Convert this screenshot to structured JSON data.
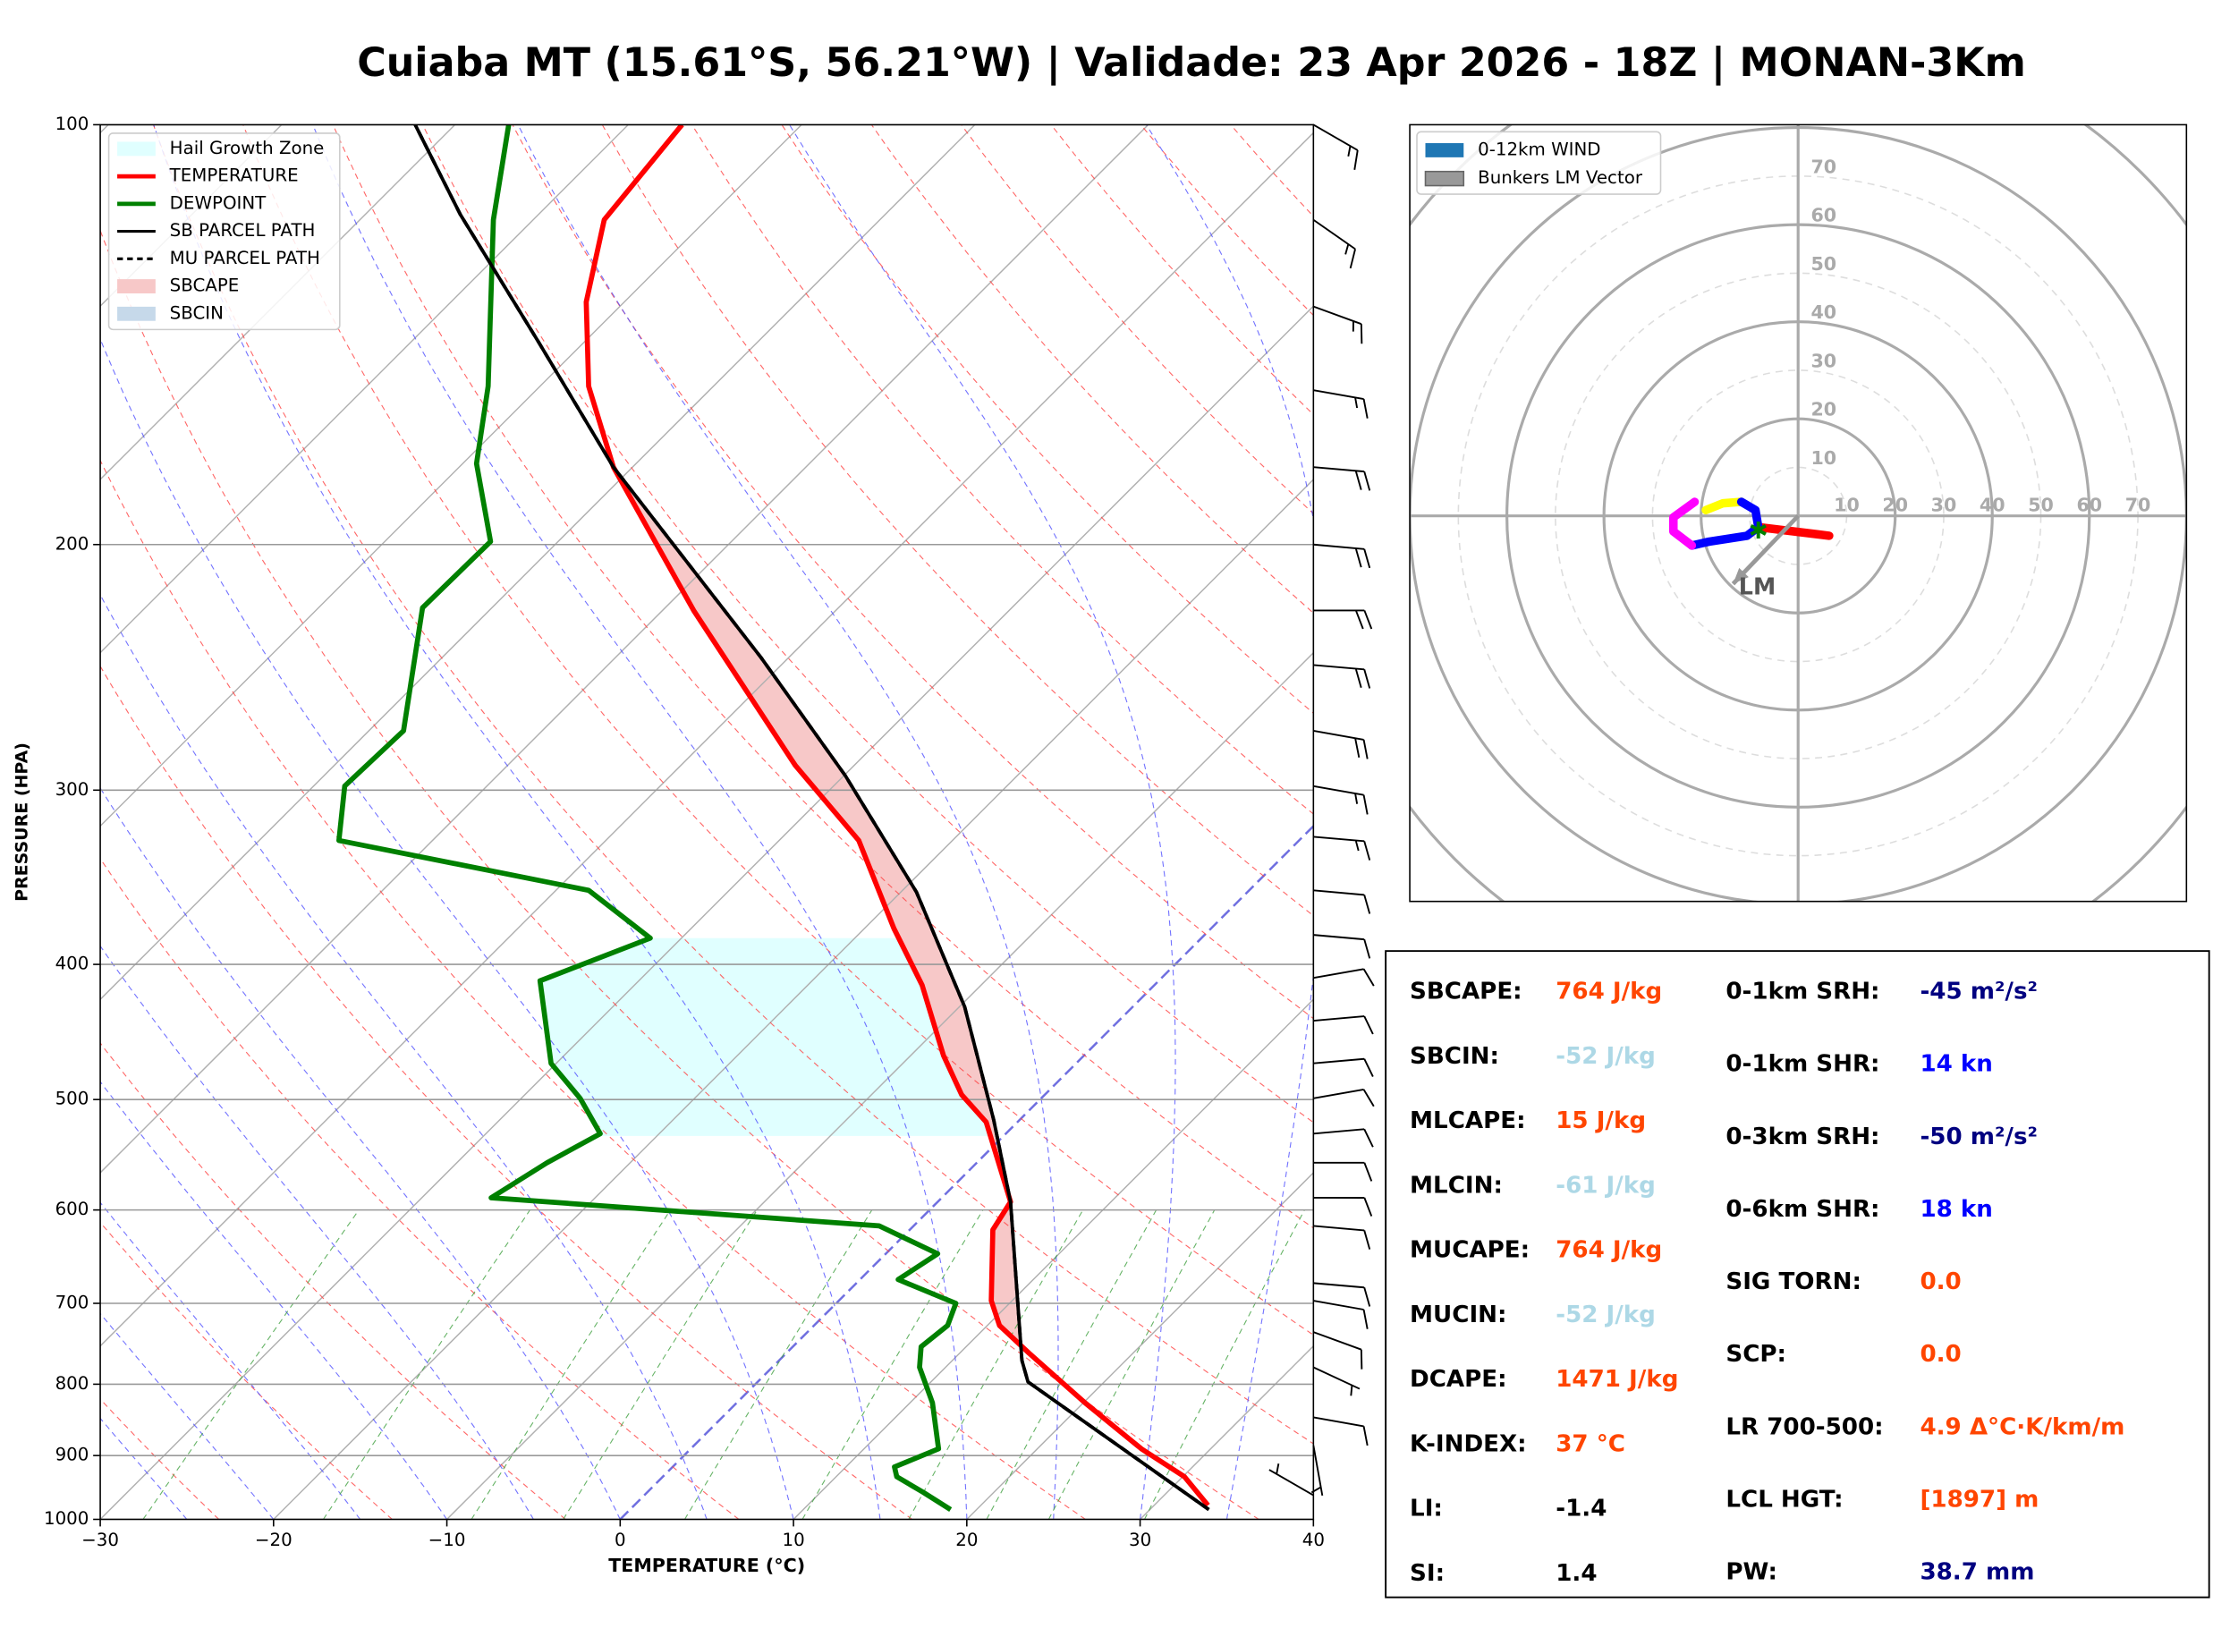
{
  "title": "Cuiaba MT (15.61°S, 56.21°W) | Validade: 23 Apr 2026 - 18Z | MONAN-3Km",
  "chart_data": [
    {
      "type": "skewt",
      "xlabel": "TEMPERATURE (°C)",
      "ylabel": "PRESSURE (HPA)",
      "xlim": [
        -30,
        40
      ],
      "ylim": [
        1000,
        100
      ],
      "log_y": true,
      "skew": true,
      "grid": true,
      "legend": "upper left",
      "freezing_isotherm": 0,
      "xticks": [
        {
          "value": -30,
          "label": "−30"
        },
        {
          "value": -20,
          "label": "−20"
        },
        {
          "value": -10,
          "label": "−10"
        },
        0,
        10,
        20,
        30,
        40
      ],
      "yticks": [
        100,
        200,
        300,
        400,
        500,
        600,
        700,
        800,
        900,
        1000
      ],
      "series": [
        {
          "name": "TEMPERATURE",
          "color": "#ff0000",
          "linestyle": "solid",
          "y": [
            977,
            932,
            890,
            825,
            760,
            726,
            697,
            620,
            592,
            519,
            496,
            465,
            414,
            377,
            326,
            288,
            223,
            176,
            154,
            134,
            117,
            100
          ],
          "x": [
            33.1,
            30.1,
            26.0,
            20.1,
            14.0,
            10.7,
            8.8,
            4.8,
            4.2,
            -1.8,
            -4.8,
            -8.1,
            -13.4,
            -18.3,
            -25.4,
            -33.4,
            -48.2,
            -61.1,
            -67.2,
            -72.2,
            -75.9,
            -76.9
          ]
        },
        {
          "name": "DEWPOINT",
          "color": "#008000",
          "linestyle": "solid",
          "y": [
            984,
            956,
            932,
            917,
            890,
            825,
            778,
            752,
            726,
            700,
            673,
            645,
            616,
            588,
            555,
            529,
            499,
            471,
            411,
            383,
            354,
            326,
            298,
            272,
            222,
            199,
            175,
            154,
            117,
            100
          ],
          "x": [
            18.5,
            15.9,
            13.5,
            12.8,
            14.3,
            11.3,
            8.5,
            7.4,
            7.7,
            6.9,
            2.2,
            3.0,
            -2.0,
            -26.0,
            -24.8,
            -23.4,
            -26.6,
            -30.3,
            -35.7,
            -31.8,
            -38.1,
            -55.4,
            -58.2,
            -58.0,
            -64.0,
            -63.9,
            -69.2,
            -73.0,
            -82.3,
            -86.9
          ]
        },
        {
          "name": "SB PARCEL PATH",
          "color": "#000000",
          "linestyle": "solid",
          "y": [
            984,
            797,
            769,
            592,
            517,
            429,
            355,
            293,
            241,
            176,
            143,
            116,
            100
          ],
          "x": [
            33.4,
            15.6,
            14.0,
            4.2,
            -1.5,
            -9.7,
            -19.1,
            -29.9,
            -41.6,
            -61.1,
            -72.7,
            -84.5,
            -92.3
          ]
        },
        {
          "name": "MU PARCEL PATH",
          "color": "#000000",
          "linestyle": "dashed",
          "y": [
            984,
            797,
            769,
            592,
            517,
            429,
            355,
            293,
            241,
            176,
            143,
            116,
            100
          ],
          "x": [
            33.4,
            15.6,
            14.0,
            4.2,
            -1.5,
            -9.7,
            -19.1,
            -29.9,
            -41.6,
            -61.1,
            -72.7,
            -84.5,
            -92.3
          ]
        }
      ],
      "shading": [
        {
          "name": "Hail Growth Zone",
          "color": "#e0ffff",
          "pressure_range": [
            531,
            383
          ]
        },
        {
          "name": "SBCAPE",
          "color": "#f7c8c8"
        },
        {
          "name": "SBCIN",
          "color": "#c6d9ea"
        }
      ],
      "wind_barbs": {
        "pressure": [
          100,
          117,
          135,
          155,
          176,
          200,
          223,
          244,
          272,
          298,
          324,
          354,
          381,
          409,
          439,
          471,
          499,
          529,
          555,
          588,
          616,
          677,
          697,
          734,
          778,
          845,
          885,
          961
        ],
        "direction": [
          120,
          125,
          110,
          100,
          95,
          95,
          90,
          95,
          100,
          100,
          95,
          95,
          95,
          80,
          85,
          85,
          80,
          85,
          90,
          90,
          95,
          95,
          100,
          110,
          115,
          100,
          170,
          300
        ],
        "speed": [
          15,
          15,
          15,
          15,
          20,
          20,
          20,
          20,
          20,
          15,
          15,
          10,
          10,
          10,
          10,
          10,
          10,
          10,
          10,
          10,
          10,
          10,
          10,
          10,
          5,
          10,
          5,
          5
        ]
      }
    },
    {
      "type": "hodograph",
      "rlim": [
        0,
        80
      ],
      "rticks": [
        10,
        20,
        30,
        40,
        50,
        60,
        70
      ],
      "legend": [
        {
          "name": "0-12km WIND",
          "color": "#1f77b4"
        },
        {
          "name": "Bunkers LM Vector",
          "color": "#999999"
        }
      ],
      "series": [
        {
          "color": "#ff0000",
          "u": [
            6.4,
            -8.2
          ],
          "v": [
            -4.1,
            -2.3
          ]
        },
        {
          "color": "#0000ff",
          "u": [
            -8.2,
            -10.5,
            -18.4,
            -21.9
          ],
          "v": [
            -2.3,
            -4.1,
            -5.3,
            -6.1
          ]
        },
        {
          "color": "#ff00ff",
          "u": [
            -21.9,
            -25.7,
            -25.7,
            -21.3
          ],
          "v": [
            -6.1,
            -3.2,
            -0.3,
            2.9
          ]
        },
        {
          "color": "#ffff00",
          "u": [
            -19.0,
            -15.5,
            -11.7
          ],
          "v": [
            1.2,
            2.6,
            2.9
          ]
        },
        {
          "color": "#0000ff",
          "u": [
            -11.7,
            -8.8,
            -8.2
          ],
          "v": [
            2.9,
            1.2,
            -2.3
          ]
        }
      ],
      "bunkers_lm": {
        "label": "LM",
        "u": -13.4,
        "v": -14.0
      },
      "storm_marker": {
        "u": -8.2,
        "v": -2.9,
        "color": "#008000"
      }
    }
  ],
  "table": {
    "left": [
      {
        "label": "SBCAPE:",
        "value": "764 J/kg",
        "color": "#ff4500"
      },
      {
        "label": "SBCIN:",
        "value": "-52 J/kg",
        "color": "#add8e6"
      },
      {
        "label": "MLCAPE:",
        "value": "15 J/kg",
        "color": "#ff4500"
      },
      {
        "label": "MLCIN:",
        "value": "-61 J/kg",
        "color": "#add8e6"
      },
      {
        "label": "MUCAPE:",
        "value": "764 J/kg",
        "color": "#ff4500"
      },
      {
        "label": "MUCIN:",
        "value": "-52 J/kg",
        "color": "#add8e6"
      },
      {
        "label": "DCAPE:",
        "value": "1471 J/kg",
        "color": "#ff4500"
      },
      {
        "label": "K-INDEX:",
        "value": "37 °C",
        "color": "#ff4500"
      },
      {
        "label": "LI:",
        "value": "-1.4",
        "color": "#000000"
      },
      {
        "label": "SI:",
        "value": "1.4",
        "color": "#000000"
      }
    ],
    "right": [
      {
        "label": "0-1km SRH:",
        "value": "-45 m²/s²",
        "color": "#000080"
      },
      {
        "label": "0-1km SHR:",
        "value": "14 kn",
        "color": "#0000ff"
      },
      {
        "label": "0-3km SRH:",
        "value": "-50 m²/s²",
        "color": "#000080"
      },
      {
        "label": "0-6km SHR:",
        "value": "18 kn",
        "color": "#0000ff"
      },
      {
        "label": "SIG TORN:",
        "value": "0.0",
        "color": "#ff4500"
      },
      {
        "label": "SCP:",
        "value": "0.0",
        "color": "#ff4500"
      },
      {
        "label": "LR 700-500:",
        "value": "4.9 Δ°C·K/km/m",
        "color": "#ff4500"
      },
      {
        "label": "LCL HGT:",
        "value": "[1897] m",
        "color": "#ff4500"
      },
      {
        "label": "PW:",
        "value": "38.7 mm",
        "color": "#000080"
      }
    ]
  }
}
